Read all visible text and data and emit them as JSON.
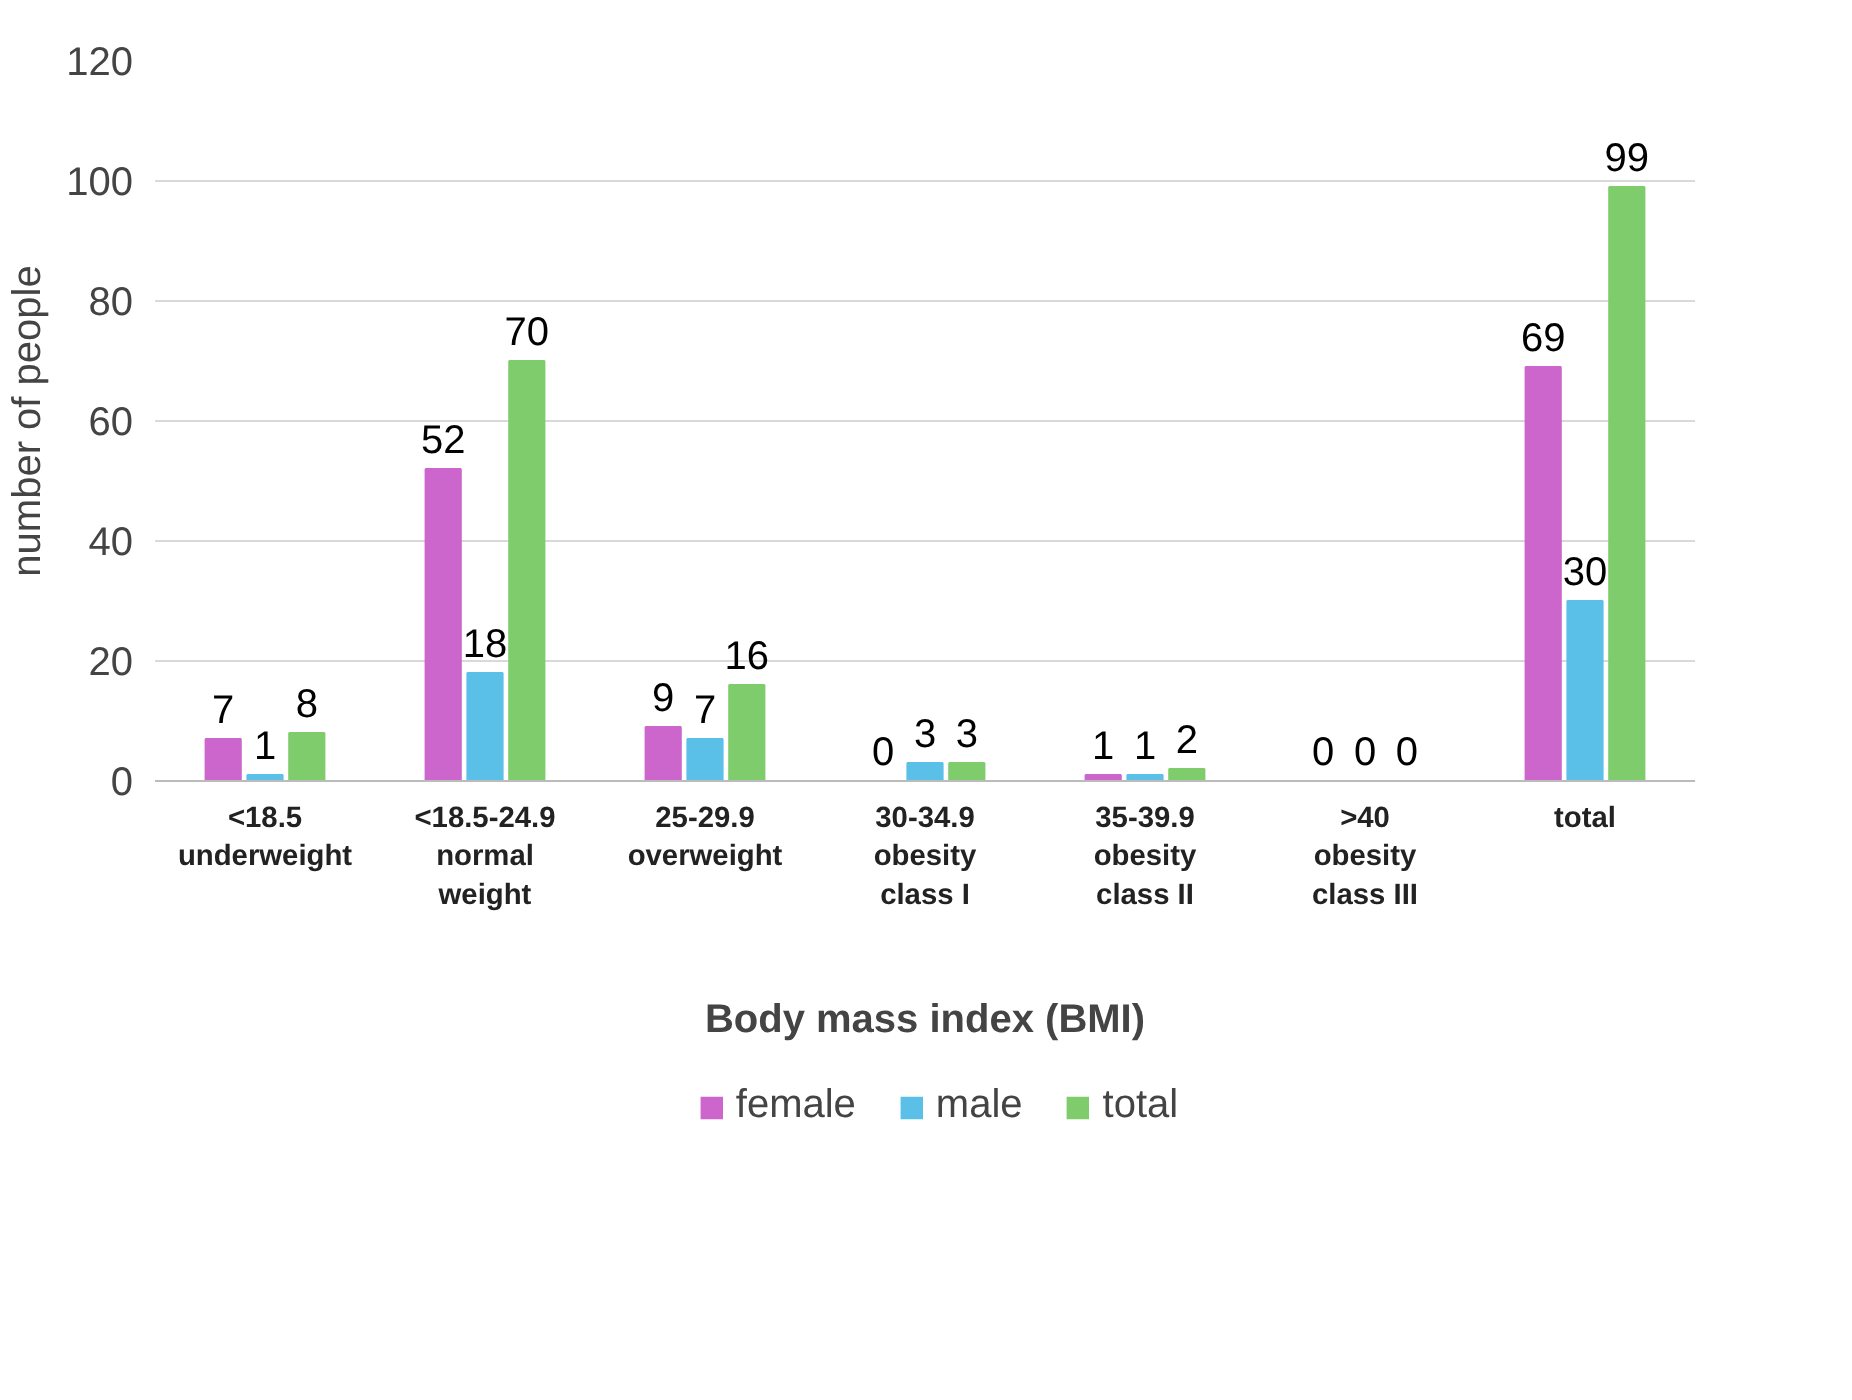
{
  "chart_data": {
    "type": "bar",
    "xlabel": "Body mass index (BMI)",
    "ylabel": "number of people",
    "categories": [
      "<18.5\nunderweight",
      "<18.5-24.9\nnormal\nweight",
      "25-29.9\noverweight",
      "30-34.9\nobesity\nclass I",
      "35-39.9\nobesity\nclass II",
      ">40\nobesity\nclass III",
      "total"
    ],
    "series": [
      {
        "name": "female",
        "color": "#cc66cc",
        "values": [
          7,
          52,
          9,
          0,
          1,
          0,
          69
        ]
      },
      {
        "name": "male",
        "color": "#5bc0e8",
        "values": [
          1,
          18,
          7,
          3,
          1,
          0,
          30
        ]
      },
      {
        "name": "total",
        "color": "#7fcc6c",
        "values": [
          8,
          70,
          16,
          3,
          2,
          0,
          99
        ]
      }
    ],
    "ylim": [
      0,
      120
    ],
    "yticks": [
      0,
      20,
      40,
      60,
      80,
      100,
      120
    ],
    "grid": "y",
    "legend": "bottom",
    "data_labels": true
  }
}
